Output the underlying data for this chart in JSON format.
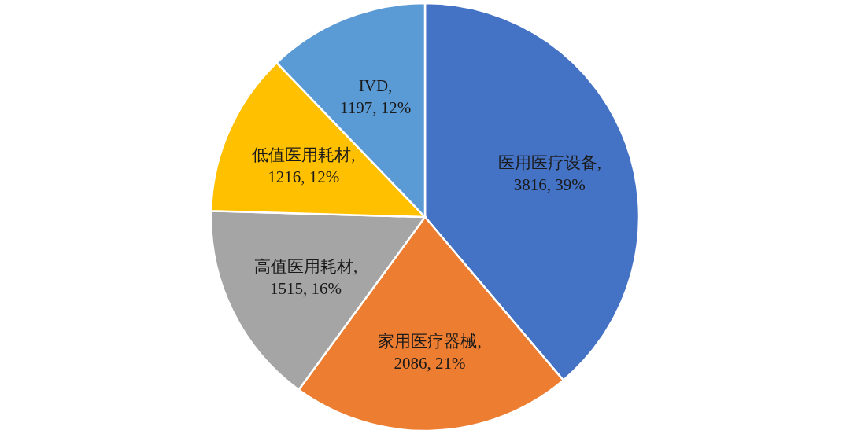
{
  "chart_data": {
    "type": "pie",
    "categories": [
      "医用医疗设备",
      "家用医疗器械",
      "高值医用耗材",
      "低值医用耗材",
      "IVD"
    ],
    "values": [
      3816,
      2086,
      1515,
      1216,
      1197
    ],
    "colors": [
      "#4472c4",
      "#ed7d31",
      "#a5a5a5",
      "#ffc000",
      "#5b9bd5"
    ],
    "value_labels": [
      ", 3816, 39%",
      ", 2086, 21%",
      ", 1515, 16%",
      ", 1216, 12%",
      ", 1197, 12%"
    ],
    "legend": false
  }
}
